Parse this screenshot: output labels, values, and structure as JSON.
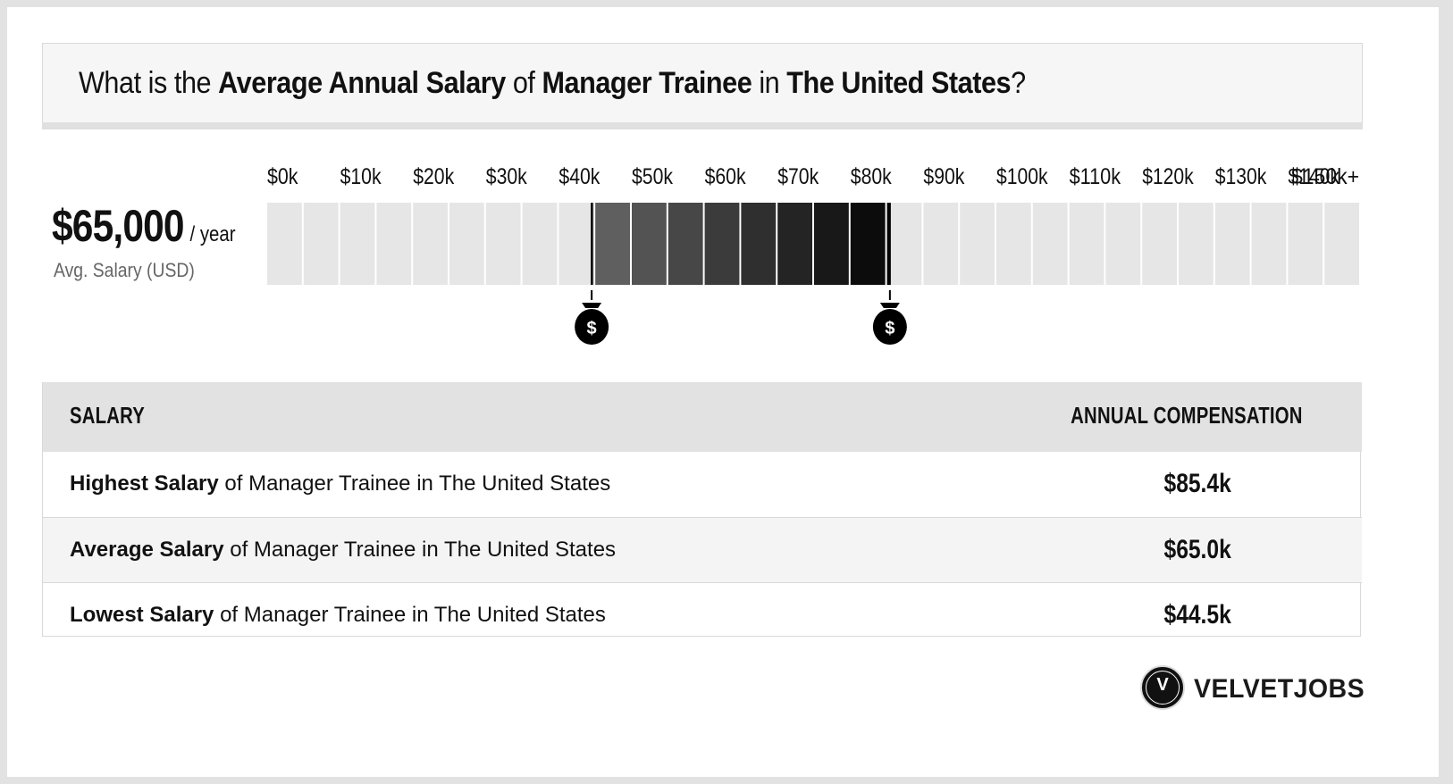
{
  "title": {
    "p1": "What is the ",
    "b1": "Average Annual Salary",
    "p2": " of ",
    "b2": "Manager Trainee",
    "p3": " in ",
    "b3": "The United States",
    "p4": "?"
  },
  "summary": {
    "value": "$65,000",
    "unit": "/ year",
    "label": "Avg. Salary (USD)"
  },
  "colors": {
    "empty_cell": "#e6e6e6",
    "range_start": "#666666",
    "range_end": "#050505",
    "marker": "#000000"
  },
  "chart_data": {
    "type": "bar",
    "orientation": "horizontal-range",
    "tick_labels": [
      "$0k",
      "$10k",
      "$20k",
      "$30k",
      "$40k",
      "$50k",
      "$60k",
      "$70k",
      "$80k",
      "$90k",
      "$100k",
      "$110k",
      "$120k",
      "$130k",
      "$140k",
      "$150k+"
    ],
    "xlim": [
      0,
      150
    ],
    "segment_width": 5,
    "range": {
      "low": 44.5,
      "high": 85.4
    },
    "average": 65.0,
    "markers": [
      {
        "name": "low-marker",
        "value": 44.5,
        "symbol": "$"
      },
      {
        "name": "high-marker",
        "value": 85.4,
        "symbol": "$"
      }
    ]
  },
  "table": {
    "col_left": "SALARY",
    "col_right": "ANNUAL COMPENSATION",
    "rows": [
      {
        "bold": "Highest Salary",
        "rest": " of Manager Trainee in The United States",
        "value": "$85.4k"
      },
      {
        "bold": "Average Salary",
        "rest": " of Manager Trainee in The United States",
        "value": "$65.0k"
      },
      {
        "bold": "Lowest Salary",
        "rest": " of Manager Trainee in The United States",
        "value": "$44.5k"
      }
    ]
  },
  "brand": {
    "letter": "V",
    "name": "VELVETJOBS"
  }
}
